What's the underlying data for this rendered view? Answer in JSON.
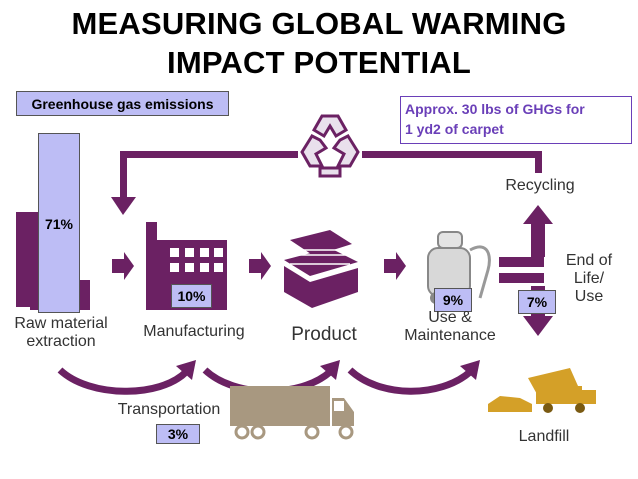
{
  "title_line1": "MEASURING GLOBAL WARMING",
  "title_line2": "IMPACT POTENTIAL",
  "legend_label": "Greenhouse gas emissions",
  "note": {
    "line1": "Approx. 30 lbs of GHGs for",
    "line2": "1 yd2 of carpet"
  },
  "stages": {
    "raw": {
      "label1": "Raw material",
      "label2": "extraction",
      "pct": "71%"
    },
    "manufacturing": {
      "label": "Manufacturing",
      "pct": "10%"
    },
    "product": {
      "label": "Product"
    },
    "use": {
      "label1": "Use &",
      "label2": "Maintenance",
      "pct": "9%"
    },
    "eol": {
      "label1": "End of",
      "label2": "Life/",
      "label3": "Use",
      "pct": "7%"
    },
    "recycling": {
      "label": "Recycling"
    },
    "landfill": {
      "label": "Landfill"
    },
    "transport": {
      "label": "Transportation",
      "pct": "3%"
    }
  },
  "colors": {
    "purple": "#6b2163",
    "bar": "#bdbdf5",
    "truck": "#a89880",
    "accent_text": "#6a3fb8"
  }
}
